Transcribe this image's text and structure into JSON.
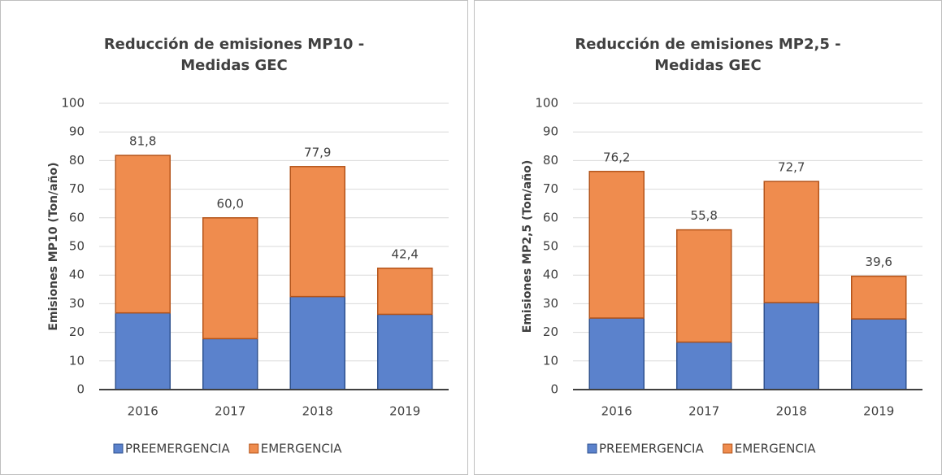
{
  "chart_data": [
    {
      "type": "stacked_bar",
      "title": "Reducción de emisiones MP10 -",
      "subtitle": "Medidas GEC",
      "ylabel": "Emisiones MP10 (Ton/año)",
      "categories": [
        "2016",
        "2017",
        "2018",
        "2019"
      ],
      "series": [
        {
          "name": "PREEMERGENCIA",
          "color": "#5b82cc",
          "values": [
            26.8,
            17.8,
            32.5,
            26.3
          ]
        },
        {
          "name": "EMERGENCIA",
          "color": "#ef8c4e",
          "values": [
            55.0,
            42.2,
            45.4,
            16.1
          ]
        }
      ],
      "totals": [
        81.8,
        60.0,
        77.9,
        42.4
      ],
      "total_labels": [
        "81,8",
        "60,0",
        "77,9",
        "42,4"
      ],
      "ylim": [
        0,
        100
      ],
      "yticks": [
        0,
        10,
        20,
        30,
        40,
        50,
        60,
        70,
        80,
        90,
        100
      ],
      "grid": true,
      "legend": "bottom"
    },
    {
      "type": "stacked_bar",
      "title": "Reducción de emisiones MP2,5 -",
      "subtitle": "Medidas GEC",
      "ylabel": "Emisiones MP2,5 (Ton/año)",
      "categories": [
        "2016",
        "2017",
        "2018",
        "2019"
      ],
      "series": [
        {
          "name": "PREEMERGENCIA",
          "color": "#5b82cc",
          "values": [
            25.0,
            16.6,
            30.4,
            24.7
          ]
        },
        {
          "name": "EMERGENCIA",
          "color": "#ef8c4e",
          "values": [
            51.2,
            39.2,
            42.3,
            14.9
          ]
        }
      ],
      "totals": [
        76.2,
        55.8,
        72.7,
        39.6
      ],
      "total_labels": [
        "76,2",
        "55,8",
        "72,7",
        "39,6"
      ],
      "ylim": [
        0,
        100
      ],
      "yticks": [
        0,
        10,
        20,
        30,
        40,
        50,
        60,
        70,
        80,
        90,
        100
      ],
      "grid": true,
      "legend": "bottom"
    }
  ]
}
